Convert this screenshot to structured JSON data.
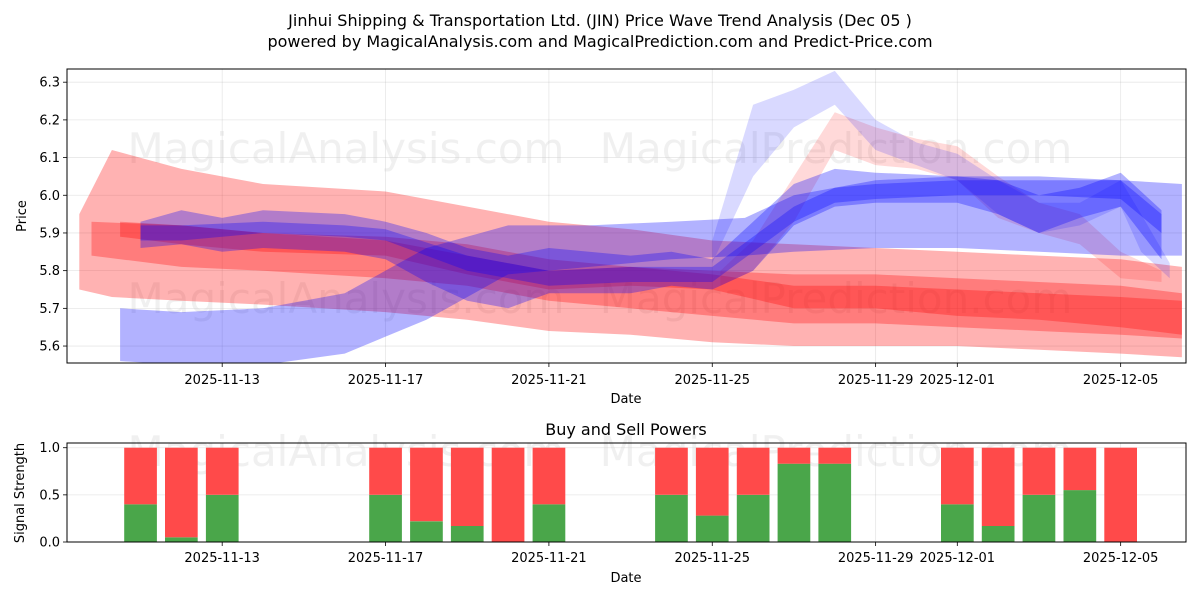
{
  "title_line1": "Jinhui Shipping & Transportation Ltd. (JIN) Price Wave Trend Analysis (Dec 05 )",
  "title_line2": "powered by MagicalAnalysis.com and MagicalPrediction.com and Predict-Price.com",
  "watermarks": [
    "MagicalAnalysis.com",
    "MagicalPrediction.com"
  ],
  "colors": {
    "red_band": "#ff0000",
    "blue_band": "#0000ff",
    "buy": "#4aa64a",
    "sell": "#ff4a4a"
  },
  "chart_data": [
    {
      "type": "area",
      "name": "price-wave",
      "xlabel": "Date",
      "ylabel": "Price",
      "ylim": [
        5.555,
        6.335
      ],
      "xlim_days": [
        -1.8,
        25.6
      ],
      "x_ticks": [
        "2025-11-13",
        "2025-11-17",
        "2025-11-21",
        "2025-11-25",
        "2025-11-29",
        "2025-12-01",
        "2025-12-05"
      ],
      "x_tick_days": [
        2,
        6,
        10,
        14,
        18,
        20,
        24
      ],
      "y_ticks": [
        5.6,
        5.7,
        5.8,
        5.9,
        6.0,
        6.1,
        6.2,
        6.3
      ],
      "grid": true,
      "series": [
        {
          "name": "red-wide-top",
          "color": "red",
          "x": [
            -1.5,
            -0.7,
            1,
            3,
            6,
            8,
            10,
            12,
            14,
            16,
            18,
            20,
            22,
            24,
            25.5
          ],
          "lower": [
            5.75,
            5.73,
            5.72,
            5.71,
            5.69,
            5.67,
            5.64,
            5.63,
            5.61,
            5.6,
            5.6,
            5.6,
            5.59,
            5.58,
            5.57
          ],
          "upper": [
            5.95,
            6.12,
            6.07,
            6.03,
            6.01,
            5.97,
            5.93,
            5.91,
            5.88,
            5.87,
            5.86,
            5.85,
            5.84,
            5.83,
            5.81
          ],
          "opacity": 0.3
        },
        {
          "name": "red-upper",
          "color": "red",
          "x": [
            -1.2,
            1,
            3,
            6,
            8,
            10,
            12,
            14,
            16,
            18,
            20,
            22,
            24,
            25.5
          ],
          "lower": [
            5.84,
            5.81,
            5.8,
            5.78,
            5.76,
            5.72,
            5.7,
            5.68,
            5.66,
            5.66,
            5.65,
            5.64,
            5.63,
            5.62
          ],
          "upper": [
            5.93,
            5.92,
            5.9,
            5.89,
            5.87,
            5.83,
            5.81,
            5.8,
            5.79,
            5.79,
            5.78,
            5.77,
            5.76,
            5.74
          ],
          "opacity": 0.3
        },
        {
          "name": "red-lower",
          "color": "red",
          "x": [
            -0.5,
            1,
            3,
            6,
            8,
            10,
            12,
            14,
            16,
            18,
            20,
            22,
            24,
            25.5
          ],
          "lower": [
            5.89,
            5.87,
            5.85,
            5.84,
            5.79,
            5.75,
            5.76,
            5.75,
            5.7,
            5.7,
            5.68,
            5.67,
            5.65,
            5.63
          ],
          "upper": [
            5.93,
            5.92,
            5.9,
            5.88,
            5.84,
            5.8,
            5.81,
            5.79,
            5.76,
            5.76,
            5.75,
            5.74,
            5.73,
            5.72
          ],
          "opacity": 0.3
        },
        {
          "name": "red-peak",
          "color": "red",
          "x": [
            14.2,
            15,
            16,
            17,
            18,
            19,
            20,
            21,
            22,
            23,
            24,
            25
          ],
          "lower": [
            5.76,
            5.8,
            5.93,
            6.12,
            6.08,
            6.07,
            6.04,
            5.94,
            5.9,
            5.87,
            5.78,
            5.77
          ],
          "upper": [
            5.8,
            5.88,
            6.05,
            6.22,
            6.18,
            6.15,
            6.13,
            6.05,
            5.98,
            5.95,
            5.85,
            5.8
          ],
          "opacity": 0.15
        },
        {
          "name": "blue-rising",
          "color": "blue",
          "x": [
            -0.5,
            1,
            3,
            5,
            7,
            9,
            11,
            13,
            14.8,
            16,
            18,
            20,
            22,
            24,
            25.5
          ],
          "lower": [
            5.56,
            5.55,
            5.55,
            5.58,
            5.67,
            5.79,
            5.81,
            5.83,
            5.84,
            5.85,
            5.86,
            5.86,
            5.85,
            5.84,
            5.84
          ],
          "upper": [
            5.7,
            5.69,
            5.7,
            5.74,
            5.86,
            5.92,
            5.92,
            5.93,
            5.94,
            6.0,
            6.04,
            6.05,
            6.05,
            6.04,
            6.03
          ],
          "opacity": 0.3
        },
        {
          "name": "blue-core",
          "color": "blue",
          "x": [
            0,
            1,
            2,
            3,
            5,
            6,
            7,
            8,
            9,
            10,
            12,
            13,
            14,
            15,
            16,
            17,
            18,
            20,
            21,
            22,
            23,
            24,
            25
          ],
          "lower": [
            5.86,
            5.87,
            5.85,
            5.86,
            5.85,
            5.83,
            5.77,
            5.72,
            5.7,
            5.74,
            5.74,
            5.76,
            5.75,
            5.8,
            5.92,
            5.97,
            5.98,
            5.98,
            5.95,
            5.9,
            5.94,
            5.97,
            5.83
          ],
          "upper": [
            5.93,
            5.96,
            5.94,
            5.96,
            5.95,
            5.93,
            5.9,
            5.86,
            5.84,
            5.86,
            5.84,
            5.85,
            5.83,
            5.93,
            6.03,
            6.07,
            6.06,
            6.05,
            6.04,
            6.0,
            6.02,
            6.06,
            5.96
          ],
          "opacity": 0.3
        },
        {
          "name": "blue-middle",
          "color": "blue",
          "x": [
            0,
            1,
            3,
            5,
            6,
            8,
            10,
            12,
            14,
            15,
            16,
            17,
            18,
            20,
            22,
            24,
            25
          ],
          "lower": [
            5.88,
            5.88,
            5.9,
            5.89,
            5.88,
            5.8,
            5.76,
            5.77,
            5.77,
            5.85,
            5.93,
            5.98,
            5.99,
            6.0,
            6.0,
            5.99,
            5.9
          ],
          "upper": [
            5.92,
            5.92,
            5.93,
            5.92,
            5.91,
            5.84,
            5.8,
            5.81,
            5.81,
            5.89,
            5.97,
            6.02,
            6.03,
            6.04,
            6.04,
            6.04,
            5.95
          ],
          "opacity": 0.3
        },
        {
          "name": "blue-peak",
          "color": "blue",
          "x": [
            14,
            15,
            16,
            17,
            18,
            19,
            20,
            21,
            22,
            23,
            24,
            24.5,
            25.2
          ],
          "lower": [
            5.82,
            6.05,
            6.18,
            6.24,
            6.12,
            6.08,
            6.04,
            5.95,
            5.9,
            5.92,
            5.97,
            5.85,
            5.78
          ],
          "upper": [
            5.88,
            6.24,
            6.28,
            6.33,
            6.2,
            6.14,
            6.11,
            6.04,
            5.98,
            5.98,
            6.04,
            5.95,
            5.82
          ],
          "opacity": 0.15
        }
      ]
    },
    {
      "type": "bar",
      "name": "buy-sell-powers",
      "title": "Buy and Sell Powers",
      "xlabel": "Date",
      "ylabel": "Signal Strength",
      "ylim": [
        0,
        1.05
      ],
      "y_ticks": [
        "0.0",
        "0.5",
        "1.0"
      ],
      "y_tick_values": [
        0,
        0.5,
        1.0
      ],
      "x_ticks": [
        "2025-11-13",
        "2025-11-17",
        "2025-11-21",
        "2025-11-25",
        "2025-11-29",
        "2025-12-01",
        "2025-12-05"
      ],
      "x_tick_days": [
        2,
        6,
        10,
        14,
        18,
        20,
        24
      ],
      "xlim_days": [
        -1.8,
        25.6
      ],
      "days": [
        0,
        1,
        2,
        6,
        7,
        8,
        9,
        10,
        13,
        14,
        15,
        16,
        17,
        20,
        21,
        22,
        23,
        24
      ],
      "buy": [
        0.4,
        0.05,
        0.5,
        0.5,
        0.22,
        0.17,
        0.0,
        0.4,
        0.5,
        0.28,
        0.5,
        0.83,
        0.83,
        0.4,
        0.17,
        0.5,
        0.55,
        0.0
      ],
      "sell": [
        0.6,
        0.95,
        0.5,
        0.5,
        0.78,
        0.83,
        1.0,
        0.6,
        0.5,
        0.72,
        0.5,
        0.17,
        0.17,
        0.6,
        0.83,
        0.5,
        0.45,
        1.0
      ]
    }
  ]
}
